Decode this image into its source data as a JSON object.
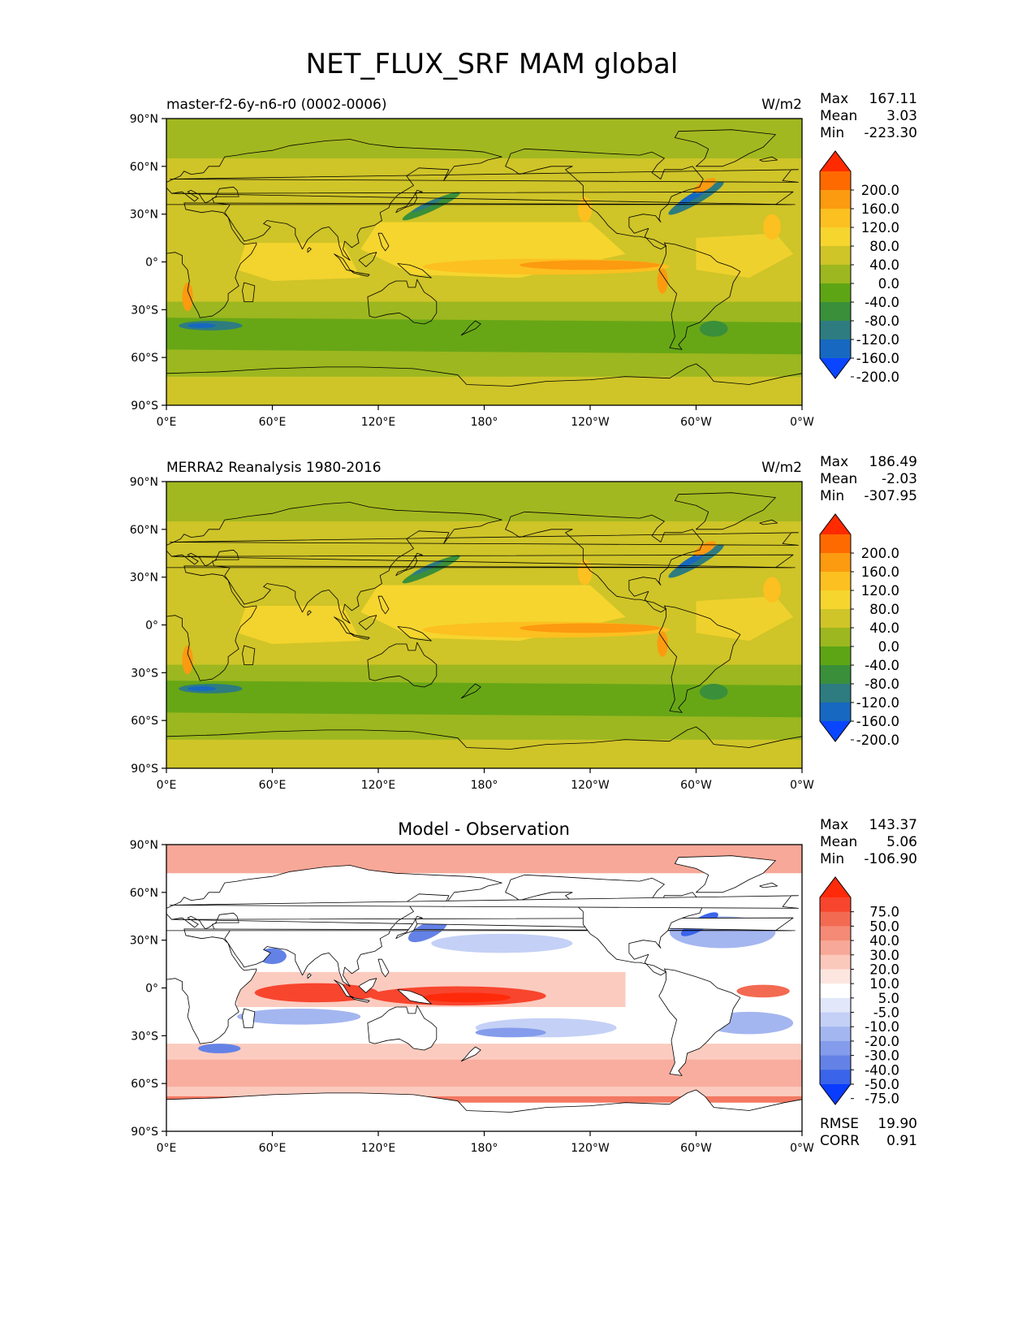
{
  "title": "NET_FLUX_SRF MAM global",
  "lat_ticks": [
    "90°N",
    "60°N",
    "30°N",
    "0°",
    "30°S",
    "60°S",
    "90°S"
  ],
  "lon_ticks": [
    "0°E",
    "60°E",
    "120°E",
    "180°",
    "120°W",
    "60°W",
    "0°W"
  ],
  "panels": [
    {
      "id": "model",
      "left_title": "master-f2-6y-n6-r0 (0002-0006)",
      "units": "W/m2",
      "center_title": "",
      "stats": [
        {
          "label": "Max",
          "value": "167.11"
        },
        {
          "label": "Mean",
          "value": "3.03"
        },
        {
          "label": "Min",
          "value": "-223.30"
        }
      ],
      "colorbar": {
        "labels": [
          "200.0",
          "160.0",
          "120.0",
          "80.0",
          "40.0",
          "0.0",
          "-40.0",
          "-80.0",
          "-120.0",
          "-160.0",
          "-200.0"
        ],
        "colors": [
          "#ff2a00",
          "#ff6a00",
          "#fc9a10",
          "#fcc020",
          "#f6d52e",
          "#cfc428",
          "#9cb71f",
          "#5ea515",
          "#3a8f3a",
          "#2e7c80",
          "#1668c0",
          "#0a46ff"
        ]
      }
    },
    {
      "id": "obs",
      "left_title": "MERRA2 Reanalysis 1980-2016",
      "units": "W/m2",
      "center_title": "",
      "stats": [
        {
          "label": "Max",
          "value": "186.49"
        },
        {
          "label": "Mean",
          "value": "-2.03"
        },
        {
          "label": "Min",
          "value": "-307.95"
        }
      ],
      "colorbar": {
        "labels": [
          "200.0",
          "160.0",
          "120.0",
          "80.0",
          "40.0",
          "0.0",
          "-40.0",
          "-80.0",
          "-120.0",
          "-160.0",
          "-200.0"
        ],
        "colors": [
          "#ff2a00",
          "#ff6a00",
          "#fc9a10",
          "#fcc020",
          "#f6d52e",
          "#cfc428",
          "#9cb71f",
          "#5ea515",
          "#3a8f3a",
          "#2e7c80",
          "#1668c0",
          "#0a46ff"
        ]
      }
    },
    {
      "id": "diff",
      "left_title": "",
      "units": "",
      "center_title": "Model - Observation",
      "stats": [
        {
          "label": "Max",
          "value": "143.37"
        },
        {
          "label": "Mean",
          "value": "5.06"
        },
        {
          "label": "Min",
          "value": "-106.90"
        }
      ],
      "extra_stats": [
        {
          "label": "RMSE",
          "value": "19.90"
        },
        {
          "label": "CORR",
          "value": "0.91"
        }
      ],
      "colorbar": {
        "labels": [
          "75.0",
          "50.0",
          "40.0",
          "30.0",
          "20.0",
          "10.0",
          "5.0",
          "-5.0",
          "-10.0",
          "-20.0",
          "-30.0",
          "-40.0",
          "-50.0",
          "-75.0"
        ],
        "colors": [
          "#ff2a0a",
          "#f8452e",
          "#f36a52",
          "#f58a76",
          "#f8a898",
          "#fbc8bc",
          "#fde6e0",
          "#ffffff",
          "#e2e8fa",
          "#c4d0f6",
          "#a4b6f0",
          "#849ceb",
          "#6482e6",
          "#3a64ea",
          "#0a3cff"
        ]
      }
    }
  ]
}
